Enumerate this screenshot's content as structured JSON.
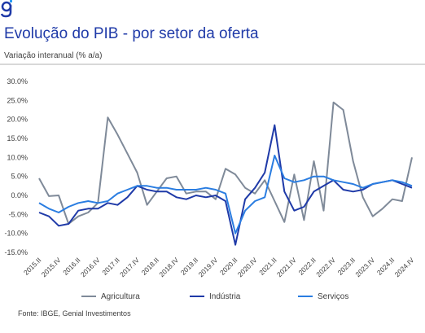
{
  "chart_data": {
    "type": "line",
    "title": "Evolução do PIB - por setor da oferta",
    "subtitle": "Variação interanual (% a/a)",
    "source": "Fonte: IBGE, Genial Investimentos",
    "categories": [
      "2015.II",
      null,
      "2015.IV",
      null,
      "2016.II",
      null,
      "2016.IV",
      null,
      "2017.II",
      null,
      "2017.IV",
      null,
      "2018.II",
      null,
      "2018.IV",
      null,
      "2019.II",
      null,
      "2019.IV",
      null,
      "2020.II",
      null,
      "2020.IV",
      null,
      "2021.II",
      null,
      "2021.IV",
      null,
      "2022.II",
      null,
      "2022.IV",
      null,
      "2023.II",
      null,
      "2023.IV",
      null,
      "2024.II",
      null,
      "2024.IV"
    ],
    "series": [
      {
        "name": "Agricultura",
        "color": "#7f8a99",
        "values": [
          4.5,
          -0.2,
          0,
          -7.5,
          -5.5,
          -4.5,
          -2,
          20.5,
          16,
          11,
          6,
          -2.5,
          1,
          4.5,
          5,
          0.5,
          1,
          1,
          -1,
          7,
          5.5,
          2,
          0.5,
          4,
          -1.5,
          -7,
          5.5,
          -6.5,
          9,
          -4,
          24.5,
          22.5,
          9,
          -0.5,
          -5.5,
          -3.5,
          -1,
          -1.5,
          10
        ]
      },
      {
        "name": "Indústria",
        "color": "#1f3aa8",
        "values": [
          -4.5,
          -5.5,
          -8,
          -7.5,
          -4,
          -3.5,
          -3.5,
          -2,
          -2.5,
          -0.5,
          2.5,
          1.5,
          1,
          1,
          -0.5,
          -1,
          0,
          -0.5,
          0,
          -1.5,
          -13,
          -1,
          2,
          6,
          18.5,
          1,
          -4,
          -3,
          1,
          2.5,
          4,
          1.5,
          1,
          1.5,
          3,
          3.5,
          4,
          3,
          2
        ]
      },
      {
        "name": "Serviços",
        "color": "#2a7de1",
        "values": [
          -2,
          -3.5,
          -4.5,
          -3,
          -2,
          -1.5,
          -2,
          -1.5,
          0.5,
          1.5,
          2.5,
          2.5,
          2,
          2,
          1.5,
          1.5,
          1.5,
          2,
          1.5,
          0.5,
          -10,
          -4,
          -1.5,
          -0.5,
          10.5,
          4.5,
          3.5,
          4,
          5,
          5,
          4,
          3.5,
          3,
          2,
          3,
          3.5,
          4,
          3.5,
          2.5
        ]
      }
    ],
    "ylim": [
      -15,
      30
    ],
    "yticks": [
      {
        "value": -15,
        "label": "-15.0%"
      },
      {
        "value": -10,
        "label": "-10.0%"
      },
      {
        "value": -5,
        "label": "-5.0%"
      },
      {
        "value": 0,
        "label": "0.0%"
      },
      {
        "value": 5,
        "label": "5.0%"
      },
      {
        "value": 10,
        "label": "10.0%"
      },
      {
        "value": 15,
        "label": "15.0%"
      },
      {
        "value": 20,
        "label": "20.0%"
      },
      {
        "value": 25,
        "label": "25.0%"
      },
      {
        "value": 30,
        "label": "30.0%"
      }
    ],
    "grid": false
  }
}
